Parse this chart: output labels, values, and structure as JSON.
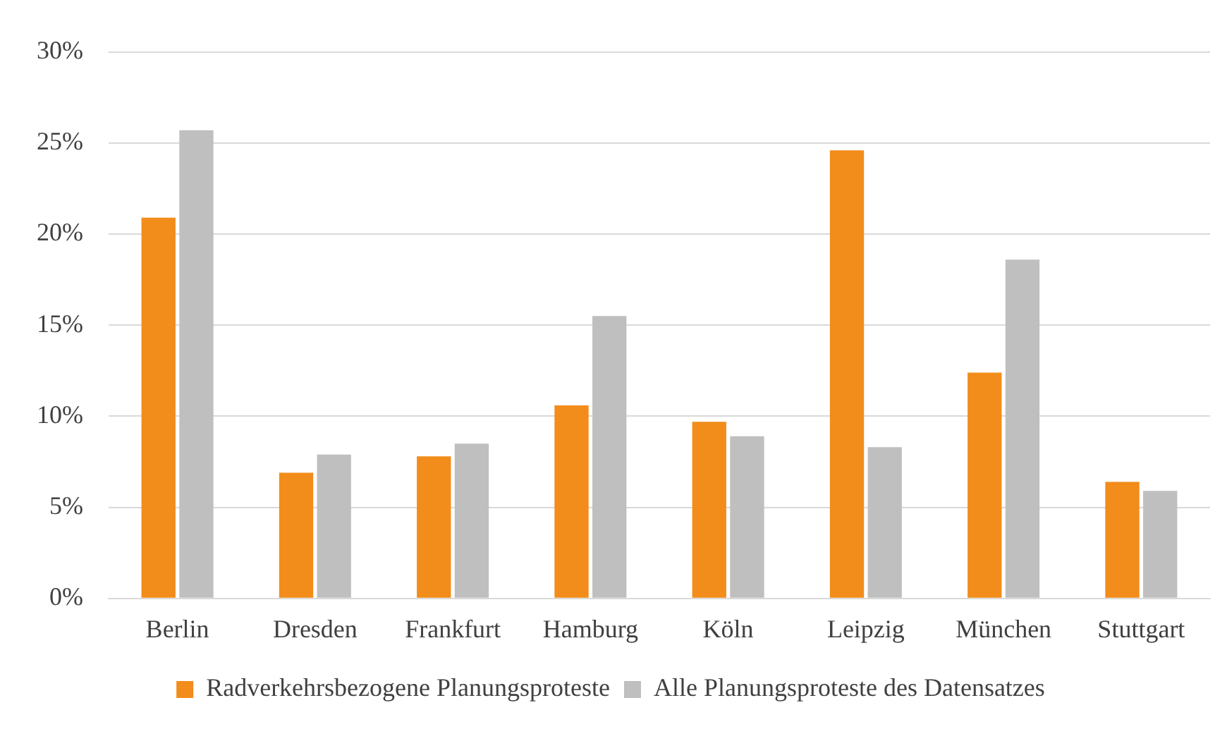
{
  "chart_data": {
    "type": "bar",
    "categories": [
      "Berlin",
      "Dresden",
      "Frankfurt",
      "Hamburg",
      "Köln",
      "Leipzig",
      "München",
      "Stuttgart"
    ],
    "series": [
      {
        "name": "Radverkehrsbezogene Planungsproteste",
        "color": "#f28c1a",
        "values": [
          20.9,
          6.9,
          7.8,
          10.6,
          9.7,
          24.6,
          12.4,
          6.4
        ]
      },
      {
        "name": "Alle Planungsproteste des Datensatzes",
        "color": "#bfbfbf",
        "values": [
          25.7,
          7.9,
          8.5,
          15.5,
          8.9,
          8.3,
          18.6,
          5.9
        ]
      }
    ],
    "ylim": [
      0,
      30
    ],
    "yticks": [
      {
        "value": 0,
        "label": "0%"
      },
      {
        "value": 5,
        "label": "5%"
      },
      {
        "value": 10,
        "label": "10%"
      },
      {
        "value": 15,
        "label": "15%"
      },
      {
        "value": 20,
        "label": "20%"
      },
      {
        "value": 25,
        "label": "25%"
      },
      {
        "value": 30,
        "label": "30%"
      }
    ],
    "grid": "y",
    "legend": "bottom"
  }
}
